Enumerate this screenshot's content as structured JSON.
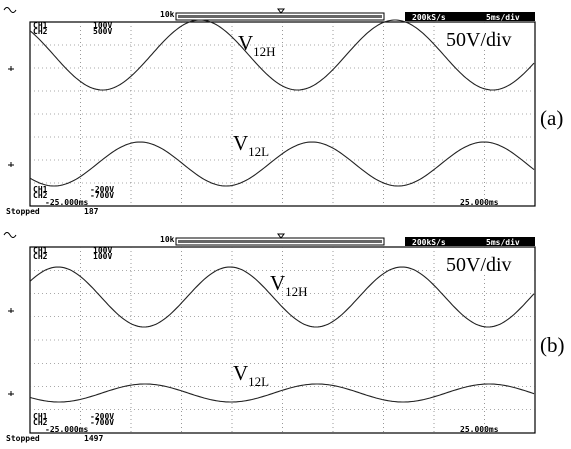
{
  "panels": [
    {
      "label": "(a)",
      "zoom": "10k",
      "sample_rate": "200kS/s",
      "time_per_div": "5ms/div",
      "scale": "50V/div",
      "ch_top": [
        [
          "CH1",
          "100V"
        ],
        [
          "CH2",
          "500V"
        ]
      ],
      "ch_bottom": [
        [
          "CH1",
          "-200V"
        ],
        [
          "CH2",
          "-700V"
        ]
      ],
      "time_left": "-25.000ms",
      "time_right": "25.000ms",
      "status": "Stopped",
      "count": "187",
      "trace_high": {
        "symbol": "V",
        "sub": "12H"
      },
      "trace_low": {
        "symbol": "V",
        "sub": "12L"
      }
    },
    {
      "label": "(b)",
      "zoom": "10k",
      "sample_rate": "200kS/s",
      "time_per_div": "5ms/div",
      "scale": "50V/div",
      "ch_top": [
        [
          "CH1",
          "100V"
        ],
        [
          "CH2",
          "100V"
        ]
      ],
      "ch_bottom": [
        [
          "CH1",
          "-200V"
        ],
        [
          "CH2",
          "-700V"
        ]
      ],
      "time_left": "-25.000ms",
      "time_right": "25.000ms",
      "status": "Stopped",
      "count": "1497",
      "trace_high": {
        "symbol": "V",
        "sub": "12H"
      },
      "trace_low": {
        "symbol": "V",
        "sub": "12L"
      }
    }
  ]
}
